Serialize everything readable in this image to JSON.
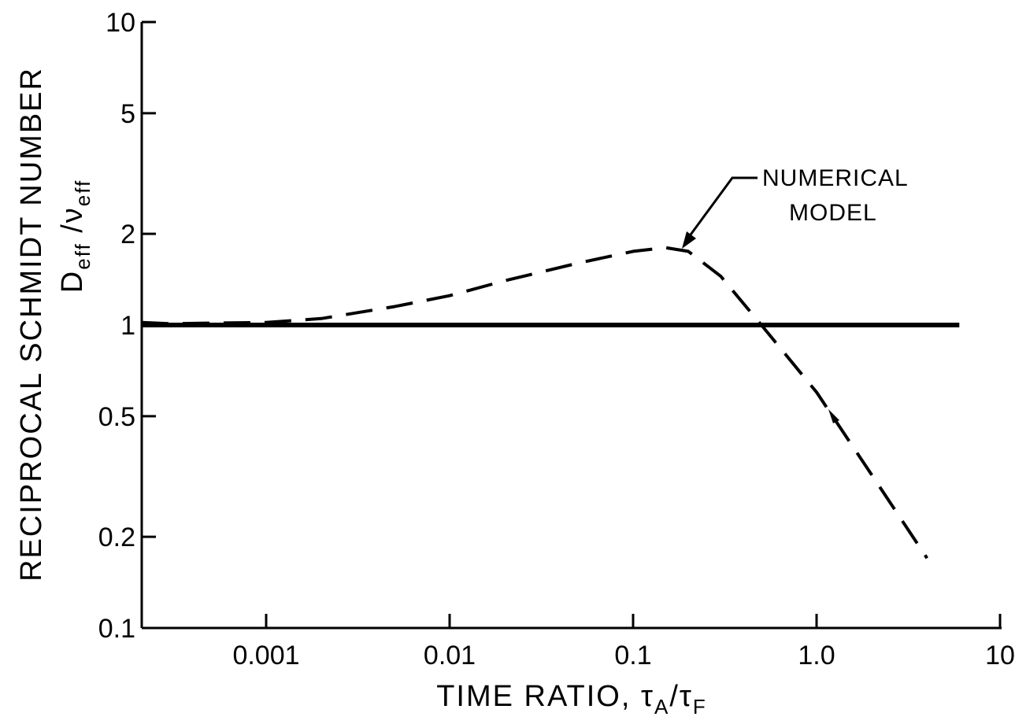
{
  "chart_data": {
    "type": "line",
    "title": "",
    "xlabel": "TIME RATIO, τ",
    "xlabel_sub1": "A",
    "xlabel_slash": "/τ",
    "xlabel_sub2": "F",
    "ylabel": "RECIPROCAL SCHMIDT NUMBER",
    "ylabel2_main": "D",
    "ylabel2_sub1": "eff",
    "ylabel2_slash": " /ν",
    "ylabel2_sub2": "eff",
    "xscale": "log",
    "yscale": "log",
    "xlim": [
      0.00015,
      10
    ],
    "ylim": [
      0.1,
      10
    ],
    "grid": false,
    "x_ticks": [
      {
        "value": 0.001,
        "label": "0.001"
      },
      {
        "value": 0.01,
        "label": "0.01"
      },
      {
        "value": 0.1,
        "label": "0.1"
      },
      {
        "value": 1.0,
        "label": "1.0"
      },
      {
        "value": 10,
        "label": "10"
      }
    ],
    "y_ticks": [
      {
        "value": 0.1,
        "label": "0.1"
      },
      {
        "value": 0.2,
        "label": "0.2"
      },
      {
        "value": 0.5,
        "label": "0.5"
      },
      {
        "value": 1,
        "label": "1"
      },
      {
        "value": 2,
        "label": "2"
      },
      {
        "value": 5,
        "label": "5"
      },
      {
        "value": 10,
        "label": "10"
      }
    ],
    "series": [
      {
        "style": "solid",
        "x": [
          0.00015,
          6
        ],
        "y": [
          1.0,
          1.0
        ]
      },
      {
        "name": "NUMERICAL MODEL",
        "style": "dashed",
        "x": [
          0.00015,
          0.0003,
          0.001,
          0.002,
          0.005,
          0.01,
          0.02,
          0.05,
          0.1,
          0.15,
          0.2,
          0.3,
          0.5,
          1.0,
          2.0,
          4.0
        ],
        "y": [
          1.02,
          1.01,
          1.02,
          1.05,
          1.15,
          1.25,
          1.4,
          1.6,
          1.75,
          1.8,
          1.75,
          1.45,
          1.0,
          0.6,
          0.32,
          0.17
        ]
      }
    ],
    "annotations": [
      {
        "text_line1": "NUMERICAL",
        "text_line2": "MODEL",
        "target_x": 0.2,
        "target_y": 1.78
      }
    ]
  }
}
